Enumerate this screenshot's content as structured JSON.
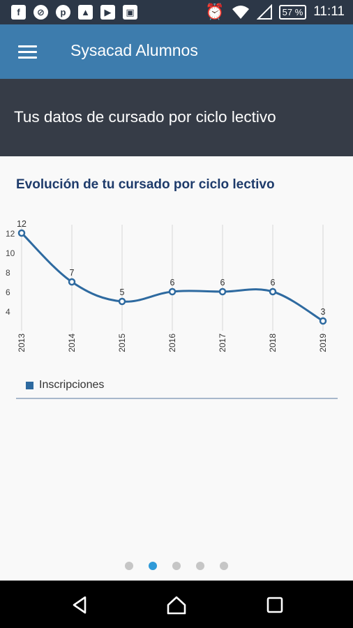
{
  "status_bar": {
    "left_icons": [
      "facebook-icon",
      "blocked-app-icon",
      "pinterest-icon",
      "image-icon",
      "youtube-icon",
      "save-icon"
    ],
    "battery": "57 %",
    "time": "11:11"
  },
  "app_bar": {
    "title": "Sysacad Alumnos"
  },
  "header": {
    "title": "Tus datos de cursado por ciclo lectivo"
  },
  "chart_data": {
    "type": "line",
    "title": "Evolución de tu cursado por ciclo lectivo",
    "categories": [
      "2013",
      "2014",
      "2015",
      "2016",
      "2017",
      "2018",
      "2019"
    ],
    "series": [
      {
        "name": "Inscripciones",
        "values": [
          12,
          7,
          5,
          6,
          6,
          6,
          3
        ],
        "color": "#2e6aa0"
      }
    ],
    "y_ticks": [
      4,
      6,
      8,
      10,
      12
    ],
    "ylim": [
      2,
      12
    ],
    "grid": "vertical",
    "legend": "bottom-left"
  },
  "pager": {
    "count": 5,
    "active": 1
  },
  "colors": {
    "app_bar": "#3d7cad",
    "header": "#363c47",
    "accent": "#2f9ad8",
    "series": "#2e6aa0"
  }
}
